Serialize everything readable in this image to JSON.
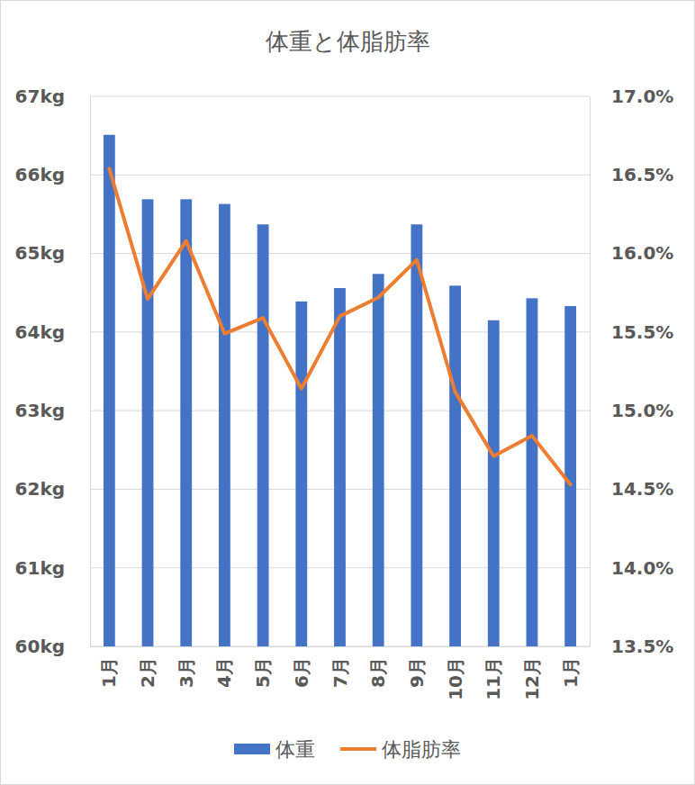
{
  "chart_data": {
    "type": "bar",
    "title": "体重と体脂肪率",
    "categories": [
      "1月",
      "2月",
      "3月",
      "4月",
      "5月",
      "6月",
      "7月",
      "8月",
      "9月",
      "10月",
      "11月",
      "12月",
      "1月"
    ],
    "series": [
      {
        "name": "体重",
        "type": "bar",
        "color": "#4472c4",
        "values": [
          66.51,
          65.69,
          65.69,
          65.63,
          65.37,
          64.39,
          64.56,
          64.74,
          65.37,
          64.59,
          64.15,
          64.43,
          64.33
        ]
      },
      {
        "name": "体脂肪率",
        "type": "line",
        "axis": "y2",
        "color": "#ed7d31",
        "values": [
          16.54,
          15.71,
          16.08,
          15.49,
          15.59,
          15.14,
          15.6,
          15.72,
          15.96,
          15.12,
          14.71,
          14.84,
          14.53
        ]
      }
    ],
    "ylim": [
      60,
      67
    ],
    "yticks": [
      {
        "value": 60,
        "label": "60kg"
      },
      {
        "value": 61,
        "label": "61kg"
      },
      {
        "value": 62,
        "label": "62kg"
      },
      {
        "value": 63,
        "label": "63kg"
      },
      {
        "value": 64,
        "label": "64kg"
      },
      {
        "value": 65,
        "label": "65kg"
      },
      {
        "value": 66,
        "label": "66kg"
      },
      {
        "value": 67,
        "label": "67kg"
      }
    ],
    "y2lim": [
      13.5,
      17.0
    ],
    "y2ticks": [
      {
        "value": 13.5,
        "label": "13.5%"
      },
      {
        "value": 14.0,
        "label": "14.0%"
      },
      {
        "value": 14.5,
        "label": "14.5%"
      },
      {
        "value": 15.0,
        "label": "15.0%"
      },
      {
        "value": 15.5,
        "label": "15.5%"
      },
      {
        "value": 16.0,
        "label": "16.0%"
      },
      {
        "value": 16.5,
        "label": "16.5%"
      },
      {
        "value": 17.0,
        "label": "17.0%"
      }
    ],
    "grid": true,
    "legend": "bottom"
  }
}
